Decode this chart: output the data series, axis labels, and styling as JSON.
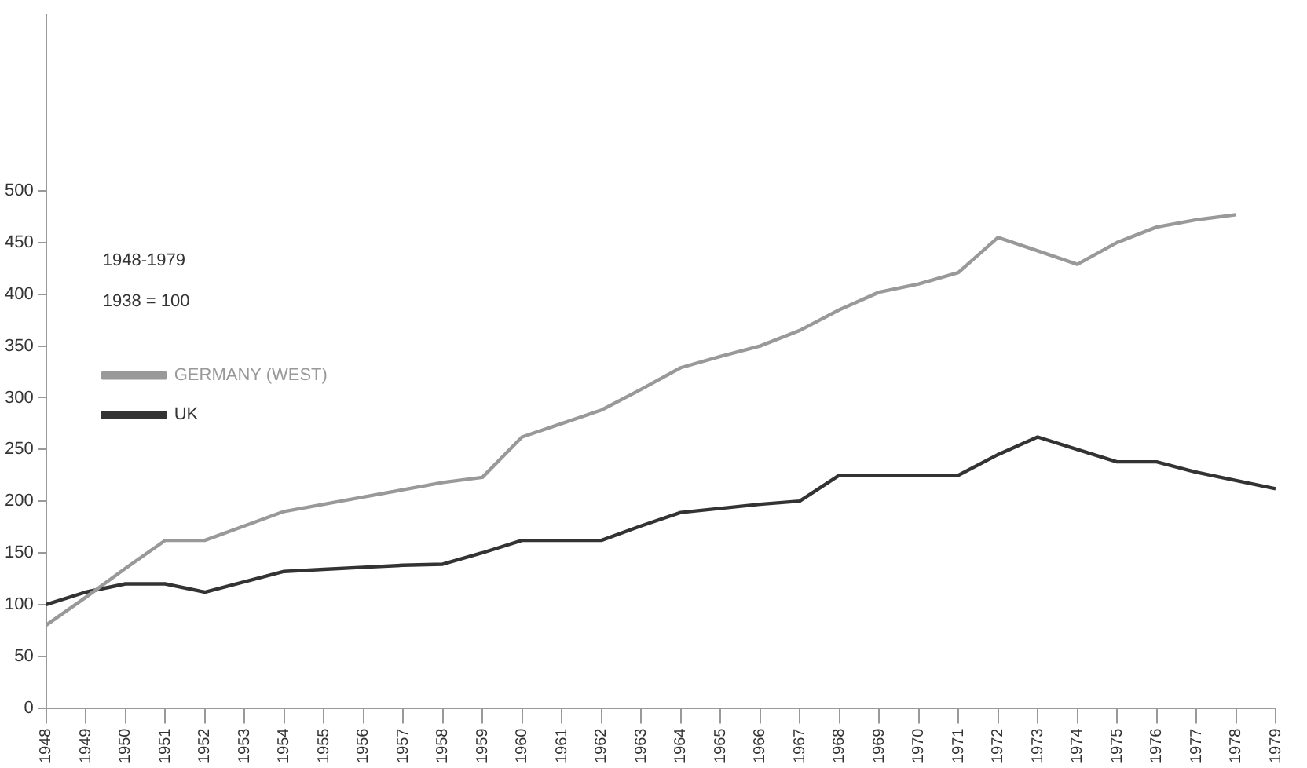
{
  "chart_data": {
    "type": "line",
    "categories": [
      "1948",
      "1949",
      "1950",
      "1951",
      "1952",
      "1953",
      "1954",
      "1955",
      "1956",
      "1957",
      "1958",
      "1959",
      "1960",
      "1961",
      "1962",
      "1963",
      "1964",
      "1965",
      "1966",
      "1967",
      "1968",
      "1969",
      "1970",
      "1971",
      "1972",
      "1973",
      "1974",
      "1975",
      "1976",
      "1977",
      "1978",
      "1979"
    ],
    "series": [
      {
        "name": "GERMANY (WEST)",
        "color": "#999999",
        "values": [
          80,
          107,
          135,
          162,
          162,
          176,
          190,
          197,
          204,
          211,
          218,
          223,
          262,
          275,
          288,
          308,
          329,
          340,
          350,
          365,
          385,
          402,
          410,
          421,
          455,
          442,
          429,
          450,
          465,
          472,
          477,
          null
        ]
      },
      {
        "name": "UK",
        "color": "#333333",
        "values": [
          100,
          112,
          120,
          120,
          112,
          122,
          132,
          134,
          136,
          138,
          139,
          150,
          162,
          162,
          162,
          176,
          189,
          193,
          197,
          200,
          225,
          225,
          225,
          225,
          245,
          262,
          250,
          238,
          238,
          228,
          220,
          212
        ]
      }
    ],
    "annotations": [
      "1948-1979",
      "1938 = 100"
    ],
    "ylim": [
      0,
      670
    ],
    "yticks": [
      0,
      50,
      100,
      150,
      200,
      250,
      300,
      350,
      400,
      450,
      500
    ],
    "grid": false,
    "legend": "left",
    "marker": "none",
    "line_style": "solid"
  }
}
